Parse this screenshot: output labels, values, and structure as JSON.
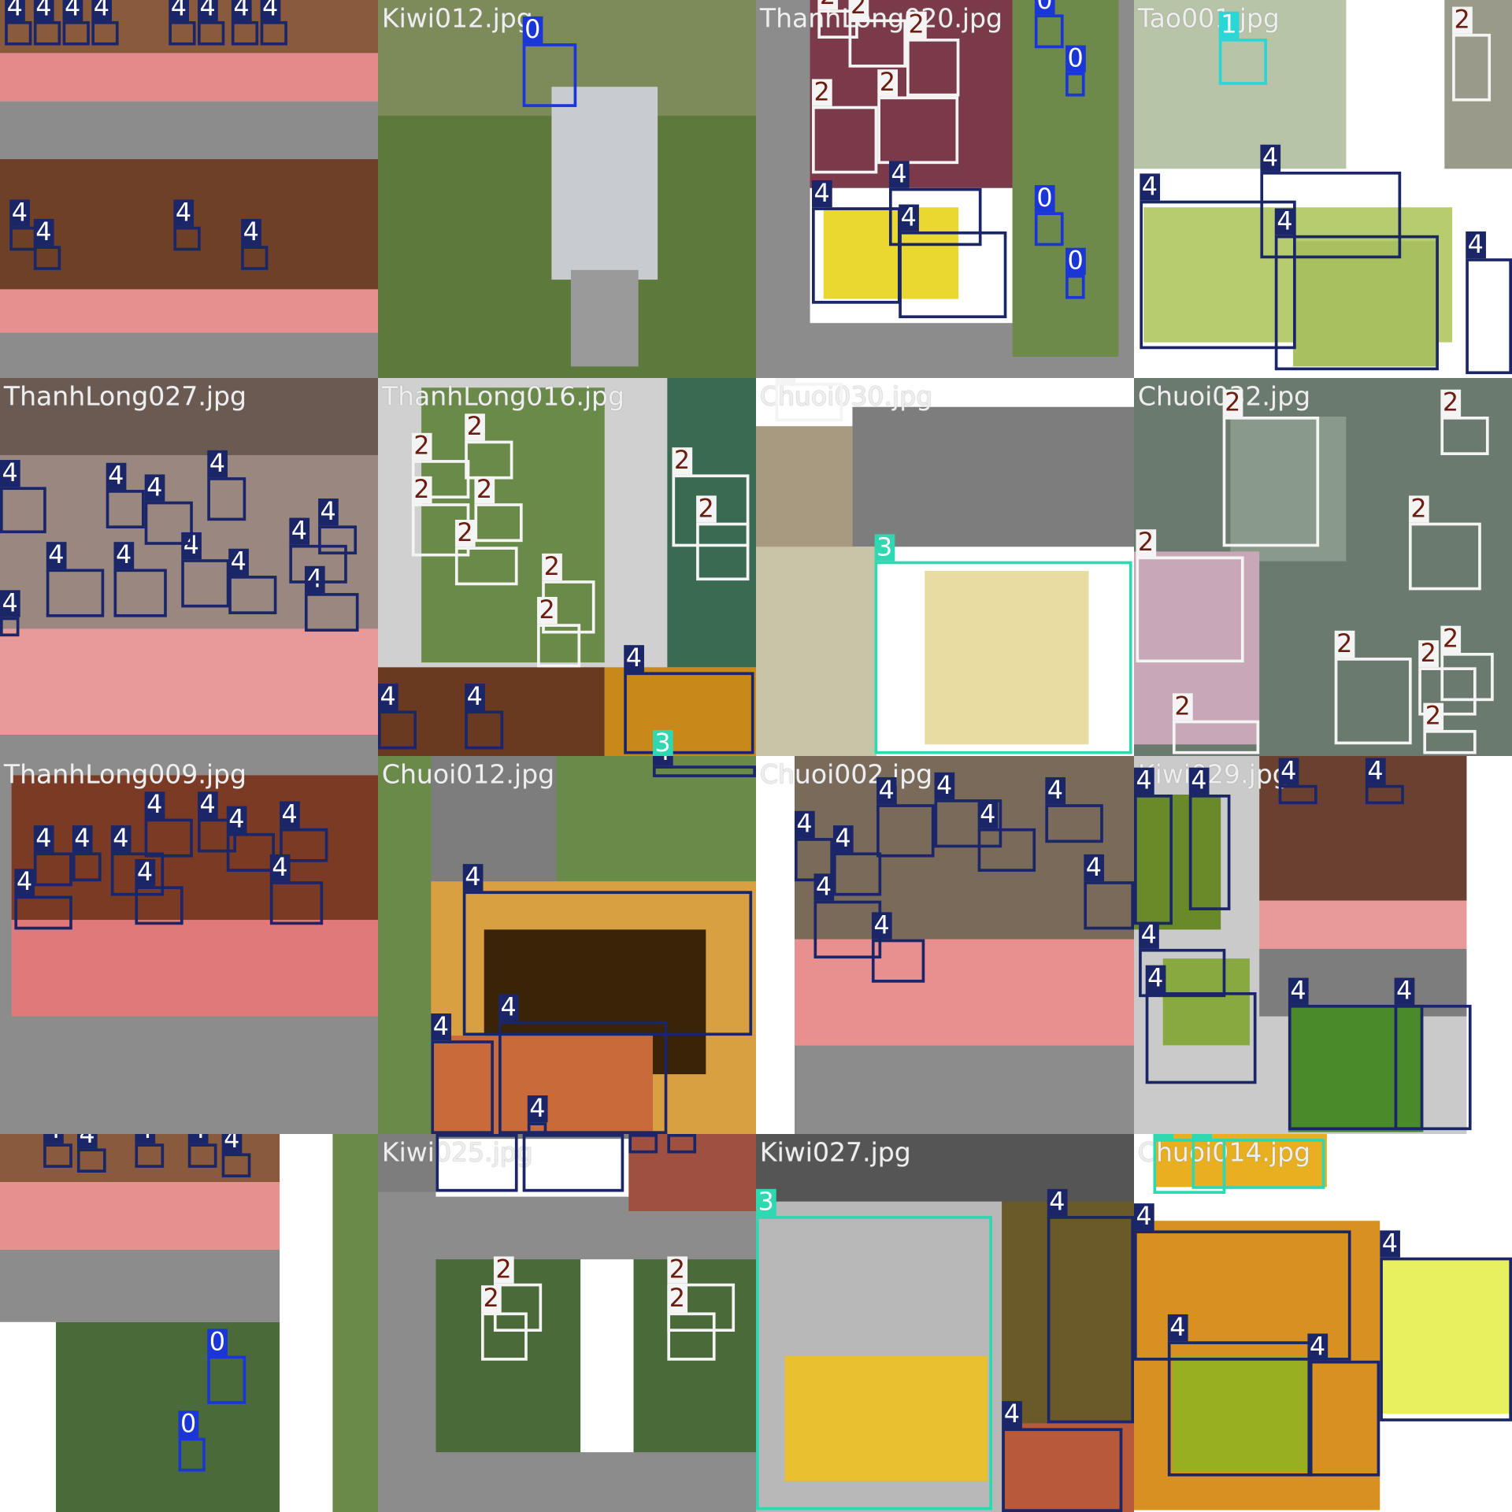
{
  "tiles": [
    {
      "boxes": [
        "4",
        "4",
        "4",
        "4",
        "4",
        "4",
        "4",
        "4",
        "4",
        "4",
        "4",
        "4"
      ]
    },
    {
      "filename": "Kiwi012.jpg",
      "boxes": [
        "0"
      ]
    },
    {
      "filename": "ThanhLong020.jpg",
      "boxes": [
        "2",
        "2",
        "2",
        "2",
        "2",
        "4",
        "4",
        "4",
        "0",
        "0",
        "0",
        "0"
      ]
    },
    {
      "filename": "Tao001.jpg",
      "boxes": [
        "1",
        "4",
        "4",
        "4",
        "4",
        "2"
      ]
    },
    {
      "filename": "ThanhLong027.jpg",
      "boxes": [
        "4",
        "4",
        "4",
        "4",
        "4",
        "4",
        "4",
        "4",
        "4",
        "4",
        "4",
        "4"
      ]
    },
    {
      "filename": "ThanhLong016.jpg",
      "boxes": [
        "2",
        "2",
        "2",
        "2",
        "2",
        "2",
        "2",
        "2",
        "2",
        "4",
        "4",
        "4",
        "3"
      ]
    },
    {
      "filename": "Chuoi030.jpg",
      "boxes": [
        "2",
        "3"
      ]
    },
    {
      "filename": "Chuoi032.jpg",
      "boxes": [
        "2",
        "2",
        "2",
        "2",
        "2",
        "2",
        "2",
        "2",
        "2"
      ]
    },
    {
      "filename": "ThanhLong009.jpg",
      "boxes": [
        "4",
        "4",
        "4",
        "4",
        "4",
        "4",
        "4",
        "4",
        "4",
        "4"
      ]
    },
    {
      "filename": "Chuoi012.jpg",
      "boxes": [
        "4",
        "4",
        "4",
        "4",
        "4"
      ]
    },
    {
      "filename": "Chuoi002.jpg",
      "boxes": [
        "4",
        "4",
        "4",
        "4",
        "4",
        "4",
        "4",
        "4",
        "4"
      ]
    },
    {
      "filename": "Kiwi029.jpg",
      "boxes": [
        "4",
        "4",
        "4",
        "4",
        "4",
        "4",
        "4",
        "4"
      ]
    },
    {
      "boxes": [
        "4",
        "4",
        "4",
        "4",
        "4",
        "0",
        "0"
      ]
    },
    {
      "filename": "Kiwi025.jpg",
      "boxes": [
        "4",
        "4",
        "2",
        "2",
        "2",
        "2",
        "4",
        "4"
      ]
    },
    {
      "filename": "Kiwi027.jpg",
      "boxes": [
        "3",
        "4",
        "4"
      ]
    },
    {
      "filename": "Chuoi014.jpg",
      "boxes": [
        "3",
        "3",
        "4",
        "4",
        "4",
        "4"
      ]
    }
  ]
}
